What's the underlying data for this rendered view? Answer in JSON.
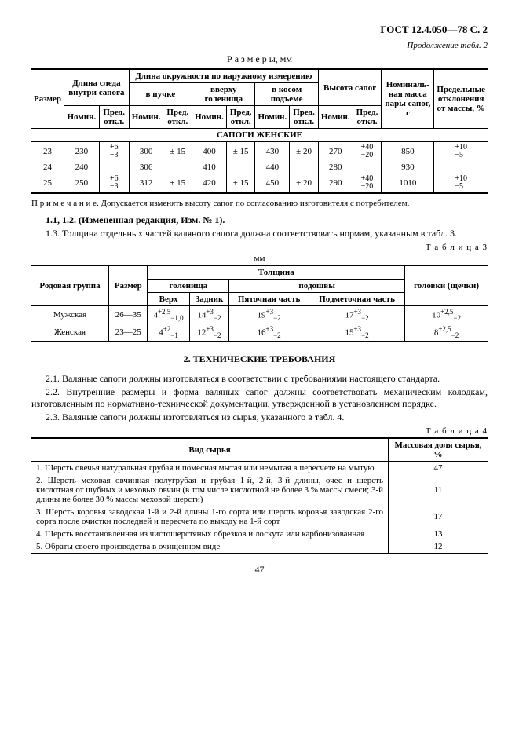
{
  "header": {
    "standard": "ГОСТ 12.4.050—78 С. 2",
    "continuation": "Продолжение табл. 2"
  },
  "table2": {
    "caption": "Р а з м е р ы,  мм",
    "headers": {
      "size": "Размер",
      "footlen": "Длина следа внутри сапога",
      "circ": "Длина окружности по наружному измерению",
      "circ_sub": [
        "в пучке",
        "вверху голенища",
        "в косом подъеме"
      ],
      "height": "Высота сапог",
      "mass": "Номиналь-\nная масса пары сапог, г",
      "dev": "Предельные отклонения от массы, %",
      "nom": "Номин.",
      "tol": "Пред. откл."
    },
    "section": "САПОГИ ЖЕНСКИЕ",
    "rows": [
      {
        "size": "23",
        "fl_n": "230",
        "fl_t": {
          "u": "+6",
          "d": "−3"
        },
        "p_n": "300",
        "p_t": "± 15",
        "g_n": "400",
        "g_t": "± 15",
        "k_n": "430",
        "k_t": "± 20",
        "h_n": "270",
        "h_t": {
          "u": "+40",
          "d": "−20"
        },
        "mass": "850",
        "dev": {
          "u": "+10",
          "d": "−5"
        }
      },
      {
        "size": "24",
        "fl_n": "240",
        "fl_t": "",
        "p_n": "306",
        "p_t": "",
        "g_n": "410",
        "g_t": "",
        "k_n": "440",
        "k_t": "",
        "h_n": "280",
        "h_t": "",
        "mass": "930",
        "dev": ""
      },
      {
        "size": "25",
        "fl_n": "250",
        "fl_t": {
          "u": "+6",
          "d": "−3"
        },
        "p_n": "312",
        "p_t": "± 15",
        "g_n": "420",
        "g_t": "± 15",
        "k_n": "450",
        "k_t": "± 20",
        "h_n": "290",
        "h_t": {
          "u": "+40",
          "d": "−20"
        },
        "mass": "1010",
        "dev": {
          "u": "+10",
          "d": "−5"
        }
      }
    ],
    "note": "П р и м е ч а н и е. Допускается изменять высоту сапог по согласованию изготовителя с потребителем."
  },
  "paras1": [
    "1.1, 1.2. (Измененная редакция, Изм. № 1).",
    "1.3. Толщина отдельных частей валяного сапога должна соответствовать нормам, указанным в табл. 3."
  ],
  "table3": {
    "label": "Т а б л и ц а  3",
    "unit": "мм",
    "headers": {
      "group": "Родовая группа",
      "size": "Размер",
      "thick": "Толщина",
      "shaft": "голенища",
      "sole": "подошвы",
      "head": "головки (щечки)",
      "top": "Верх",
      "back": "Задник",
      "heel": "Пяточная часть",
      "fore": "Подметочная часть"
    },
    "rows": [
      {
        "group": "Мужская",
        "size": "26—35",
        "top": "4<sup>+2,5</sup><sub>−1,0</sub>",
        "back": "14<sup>+3</sup><sub>−2</sub>",
        "heel": "19<sup>+3</sup><sub>−2</sub>",
        "fore": "17<sup>+3</sup><sub>−2</sub>",
        "head": "10<sup>+2,5</sup><sub>−2</sub>"
      },
      {
        "group": "Женская",
        "size": "23—25",
        "top": "4<sup>+2</sup><sub>−1</sub>",
        "back": "12<sup>+3</sup><sub>−2</sub>",
        "heel": "16<sup>+3</sup><sub>−2</sub>",
        "fore": "15<sup>+3</sup><sub>−2</sub>",
        "head": "8<sup>+2,5</sup><sub>−2</sub>"
      }
    ]
  },
  "section2": {
    "title": "2. ТЕХНИЧЕСКИЕ ТРЕБОВАНИЯ",
    "paras": [
      "2.1. Валяные сапоги должны изготовляться в соответствии с требованиями настоящего стандарта.",
      "2.2. Внутренние размеры и форма валяных сапог должны соответствовать механическим колодкам, изготовленным по нормативно-технической документации, утвержденной в установленном порядке.",
      "2.3. Валяные сапоги должны изготовляться из сырья, указанного в табл. 4."
    ]
  },
  "table4": {
    "label": "Т а б л и ц а  4",
    "headers": {
      "material": "Вид сырья",
      "share": "Массовая доля сырья, %"
    },
    "rows": [
      {
        "txt": "1. Шерсть овечья натуральная грубая и помесная мытая или немытая в пересчете на мытую",
        "val": "47"
      },
      {
        "txt": "2. Шерсть меховая овчинная полугрубая и грубая 1-й, 2-й, 3-й длины, очес и шерсть кислотная от шубных и меховых овчин (в том числе кислотной не более 3 % массы смеси; 3-й длины не более 30 % массы меховой шерсти)",
        "val": "11"
      },
      {
        "txt": "3. Шерсть коровья заводская 1-й и 2-й длины 1-го сорта или шерсть коровья заводская 2-го сорта после очистки последней и пересчета по выходу на 1-й сорт",
        "val": "17"
      },
      {
        "txt": "4. Шерсть восстановленная из чистошерстяных обрезков и лоскута или карбонизованная",
        "val": "13"
      },
      {
        "txt": "5. Обраты своего производства в очищенном виде",
        "val": "12"
      }
    ]
  },
  "pagenum": "47"
}
